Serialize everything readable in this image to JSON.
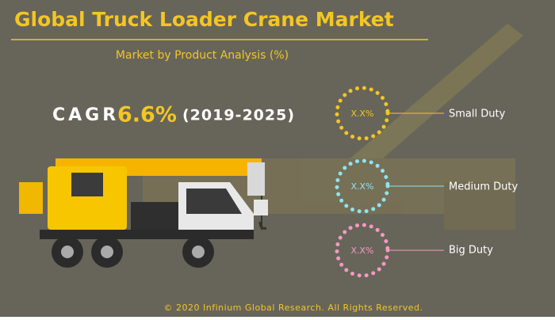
{
  "header": {
    "title": "Global Truck Loader Crane Market",
    "subtitle": "Market by Product Analysis (%)"
  },
  "cagr": {
    "label": "CAGR",
    "value": "6.6%",
    "period": "(2019-2025)"
  },
  "segments": [
    {
      "name": "Small Duty",
      "value": "X.X%"
    },
    {
      "name": "Medium Duty",
      "value": "X.X%"
    },
    {
      "name": "Big Duty",
      "value": "X.X%"
    }
  ],
  "footer": "© 2020 Infinium Global Research. All Rights Reserved."
}
